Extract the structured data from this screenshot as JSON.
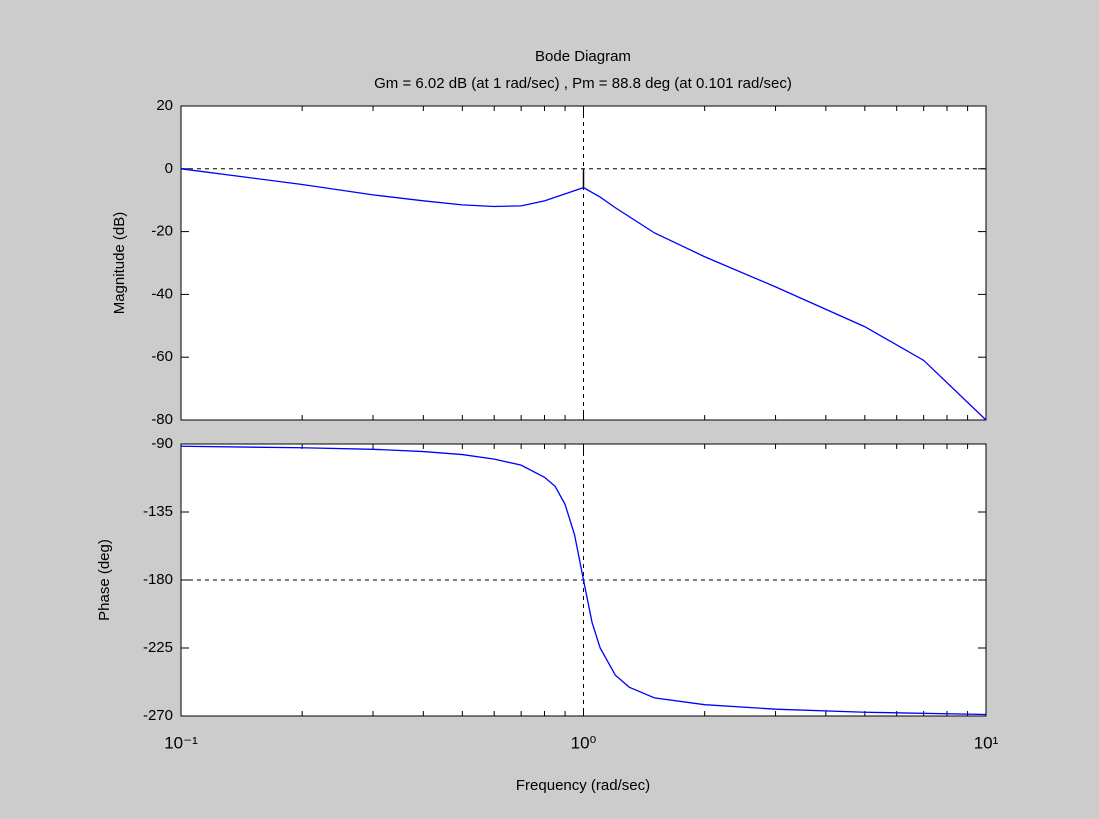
{
  "chart_data": [
    {
      "type": "line",
      "title": "Bode Diagram",
      "subtitle": "Gm = 6.02 dB (at 1 rad/sec) ,  Pm = 88.8 deg (at 0.101 rad/sec)",
      "ylabel": "Magnitude (dB)",
      "xscale": "log",
      "color": "#0000ff",
      "x": [
        0.1,
        0.2,
        0.3,
        0.4,
        0.5,
        0.6,
        0.7,
        0.8,
        0.9,
        1.0,
        1.1,
        1.2,
        1.5,
        2,
        3,
        5,
        7,
        10
      ],
      "values": [
        0,
        -5,
        -8.3,
        -10.2,
        -11.5,
        -12,
        -11.8,
        -10.2,
        -8,
        -6,
        -9,
        -12.4,
        -20.4,
        -28,
        -37.6,
        -50.3,
        -61,
        -80
      ],
      "xlim": [
        0.1,
        10
      ],
      "xticks": [
        0.1,
        1,
        10
      ],
      "xminor": [
        0.2,
        0.3,
        0.4,
        0.5,
        0.6,
        0.7,
        0.8,
        0.9,
        2,
        3,
        4,
        5,
        6,
        7,
        8,
        9
      ],
      "ylim": [
        -80,
        20
      ],
      "yticks": [
        -80,
        -60,
        -40,
        -20,
        0,
        20
      ],
      "hlines": [
        0
      ],
      "vlines": [
        0.1,
        1
      ],
      "margin_segment": {
        "x": 1,
        "y": [
          -6.02,
          0
        ]
      }
    },
    {
      "type": "line",
      "ylabel": "Phase (deg)",
      "xlabel": "Frequency  (rad/sec)",
      "xscale": "log",
      "color": "#0000ff",
      "x": [
        0.1,
        0.2,
        0.3,
        0.4,
        0.5,
        0.6,
        0.7,
        0.8,
        0.85,
        0.9,
        0.95,
        1.0,
        1.05,
        1.1,
        1.2,
        1.3,
        1.5,
        2,
        3,
        5,
        10
      ],
      "values": [
        -91.5,
        -92.5,
        -93.5,
        -95,
        -97,
        -100,
        -104,
        -112,
        -118,
        -130,
        -150,
        -180,
        -208,
        -225,
        -243,
        -251,
        -258,
        -262.5,
        -265.5,
        -267.5,
        -269
      ],
      "xlim": [
        0.1,
        10
      ],
      "xticks": [
        {
          "value": 0.1,
          "label": "10⁻¹"
        },
        {
          "value": 1,
          "label": "10⁰"
        },
        {
          "value": 10,
          "label": "10¹"
        }
      ],
      "xminor": [
        0.2,
        0.3,
        0.4,
        0.5,
        0.6,
        0.7,
        0.8,
        0.9,
        2,
        3,
        4,
        5,
        6,
        7,
        8,
        9
      ],
      "ylim": [
        -270,
        -90
      ],
      "yticks": [
        -270,
        -225,
        -180,
        -135,
        -90
      ],
      "hlines": [
        -180
      ],
      "vlines": [
        1
      ]
    }
  ]
}
